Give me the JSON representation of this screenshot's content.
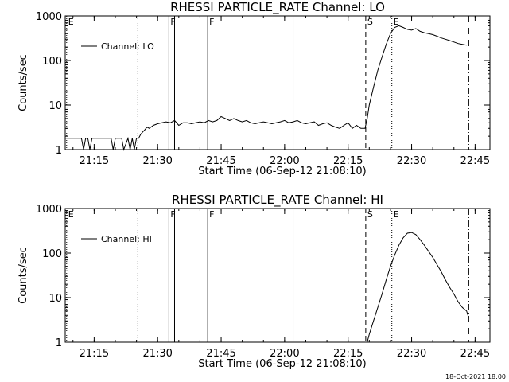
{
  "chart_data": [
    {
      "type": "line",
      "title": "RHESSI PARTICLE_RATE Channel: LO",
      "xlabel": "Start Time (06-Sep-12 21:08:10)",
      "ylabel": "Counts/sec",
      "yscale": "log",
      "xlim": [
        "21:08:10",
        "22:48:30"
      ],
      "ylim": [
        1,
        1000
      ],
      "x_ticks": [
        "21:15",
        "21:30",
        "21:45",
        "22:00",
        "22:15",
        "22:30",
        "22:45"
      ],
      "y_ticks": [
        "1",
        "10",
        "100",
        "1000"
      ],
      "legend": {
        "entries": [
          "Channel: LO"
        ],
        "placement": "top-left"
      },
      "grid": false,
      "markers": [
        {
          "time": "21:08:30",
          "style": "dotted",
          "label": "E"
        },
        {
          "time": "21:25:20",
          "style": "dotted",
          "label": ""
        },
        {
          "time": "21:32:40",
          "style": "solid",
          "label": "F"
        },
        {
          "time": "21:34:00",
          "style": "solid",
          "label": ""
        },
        {
          "time": "21:41:50",
          "style": "solid",
          "label": "F"
        },
        {
          "time": "22:02:00",
          "style": "solid",
          "label": ""
        },
        {
          "time": "22:19:10",
          "style": "dashed",
          "label": "S"
        },
        {
          "time": "22:25:20",
          "style": "dotted",
          "label": "E"
        },
        {
          "time": "22:43:30",
          "style": "dashdot",
          "label": ""
        }
      ],
      "series": [
        {
          "name": "Channel: LO",
          "x": [
            "21:08:10",
            "21:10:00",
            "21:11:00",
            "21:12:00",
            "21:12:30",
            "21:13:00",
            "21:13:30",
            "21:14:00",
            "21:14:30",
            "21:15:00",
            "21:15:30",
            "21:16:00",
            "21:17:00",
            "21:17:30",
            "21:18:00",
            "21:19:00",
            "21:19:30",
            "21:20:00",
            "21:20:30",
            "21:21:00",
            "21:21:30",
            "21:22:00",
            "21:23:00",
            "21:23:30",
            "21:24:00",
            "21:24:30",
            "21:25:00",
            "21:25:30",
            "21:26:00",
            "21:26:30",
            "21:27:00",
            "21:27:30",
            "21:28:00",
            "21:29:00",
            "21:30:00",
            "21:31:00",
            "21:32:00",
            "21:33:00",
            "21:34:00",
            "21:35:00",
            "21:36:00",
            "21:37:00",
            "21:38:00",
            "21:39:00",
            "21:40:00",
            "21:41:00",
            "21:42:00",
            "21:43:00",
            "21:44:00",
            "21:45:00",
            "21:46:00",
            "21:47:00",
            "21:48:00",
            "21:49:00",
            "21:50:00",
            "21:51:00",
            "21:52:00",
            "21:53:00",
            "21:54:00",
            "21:55:00",
            "21:56:00",
            "21:57:00",
            "21:58:00",
            "21:59:00",
            "22:00:00",
            "22:01:00",
            "22:02:00",
            "22:03:00",
            "22:04:00",
            "22:05:00",
            "22:06:00",
            "22:07:00",
            "22:08:00",
            "22:09:00",
            "22:10:00",
            "22:11:00",
            "22:12:00",
            "22:13:00",
            "22:14:00",
            "22:15:00",
            "22:16:00",
            "22:17:00",
            "22:18:00",
            "22:19:00",
            "22:19:30",
            "22:20:00",
            "22:21:00",
            "22:22:00",
            "22:23:00",
            "22:24:00",
            "22:25:00",
            "22:26:00",
            "22:27:00",
            "22:28:00",
            "22:29:00",
            "22:30:00",
            "22:31:00",
            "22:32:00",
            "22:33:00",
            "22:34:00",
            "22:35:00",
            "22:36:00",
            "22:37:00",
            "22:38:00",
            "22:39:00",
            "22:40:00",
            "22:41:00",
            "22:42:00",
            "22:43:00"
          ],
          "y": [
            1.8,
            1.8,
            1.8,
            1.8,
            1,
            1.8,
            1.8,
            1,
            1.8,
            1.8,
            1.8,
            1.8,
            1.8,
            1.8,
            1.8,
            1.8,
            1,
            1.8,
            1.8,
            1.8,
            1.8,
            1,
            1.8,
            1,
            1.8,
            1,
            1.8,
            1.8,
            2.2,
            2.5,
            2.8,
            3.2,
            3,
            3.5,
            3.8,
            4,
            4.2,
            4,
            4.5,
            3.5,
            4,
            4,
            3.8,
            4,
            4.2,
            4,
            4.5,
            4.2,
            4.5,
            5.5,
            5,
            4.5,
            5,
            4.5,
            4.2,
            4.5,
            4,
            3.8,
            4,
            4.2,
            4,
            3.8,
            4,
            4.2,
            4.5,
            4,
            4.2,
            4.5,
            4,
            3.8,
            4,
            4.2,
            3.5,
            3.8,
            4,
            3.5,
            3.2,
            3,
            3.5,
            4,
            3,
            3.5,
            3,
            3,
            5,
            10,
            25,
            60,
            120,
            230,
            400,
            550,
            600,
            550,
            500,
            480,
            520,
            450,
            420,
            400,
            380,
            350,
            320,
            300,
            280,
            260,
            240,
            230,
            220
          ]
        }
      ]
    },
    {
      "type": "line",
      "title": "RHESSI PARTICLE_RATE Channel: HI",
      "xlabel": "Start Time (06-Sep-12 21:08:10)",
      "ylabel": "Counts/sec",
      "yscale": "log",
      "xlim": [
        "21:08:10",
        "22:48:30"
      ],
      "ylim": [
        1,
        1000
      ],
      "x_ticks": [
        "21:15",
        "21:30",
        "21:45",
        "22:00",
        "22:15",
        "22:30",
        "22:45"
      ],
      "y_ticks": [
        "1",
        "10",
        "100",
        "1000"
      ],
      "legend": {
        "entries": [
          "Channel: HI"
        ],
        "placement": "top-left"
      },
      "grid": false,
      "markers": [
        {
          "time": "21:08:30",
          "style": "dotted",
          "label": "E"
        },
        {
          "time": "21:25:20",
          "style": "dotted",
          "label": ""
        },
        {
          "time": "21:32:40",
          "style": "solid",
          "label": "F"
        },
        {
          "time": "21:34:00",
          "style": "solid",
          "label": ""
        },
        {
          "time": "21:41:50",
          "style": "solid",
          "label": "F"
        },
        {
          "time": "22:02:00",
          "style": "solid",
          "label": ""
        },
        {
          "time": "22:19:10",
          "style": "dashed",
          "label": "S"
        },
        {
          "time": "22:25:20",
          "style": "dotted",
          "label": "E"
        },
        {
          "time": "22:43:30",
          "style": "dashdot",
          "label": ""
        }
      ],
      "series": [
        {
          "name": "Channel: HI",
          "x": [
            "22:19:30",
            "22:20:00",
            "22:21:00",
            "22:22:00",
            "22:23:00",
            "22:24:00",
            "22:25:00",
            "22:26:00",
            "22:27:00",
            "22:28:00",
            "22:29:00",
            "22:30:00",
            "22:31:00",
            "22:32:00",
            "22:33:00",
            "22:34:00",
            "22:35:00",
            "22:36:00",
            "22:37:00",
            "22:38:00",
            "22:39:00",
            "22:40:00",
            "22:41:00",
            "22:42:00",
            "22:43:00",
            "22:43:30"
          ],
          "y": [
            1,
            1.5,
            3,
            6,
            12,
            25,
            50,
            90,
            150,
            220,
            280,
            290,
            260,
            200,
            150,
            110,
            80,
            55,
            38,
            25,
            17,
            12,
            8,
            6,
            5,
            3.5
          ]
        }
      ]
    }
  ],
  "timestamp": "18-Oct-2021 18:00"
}
